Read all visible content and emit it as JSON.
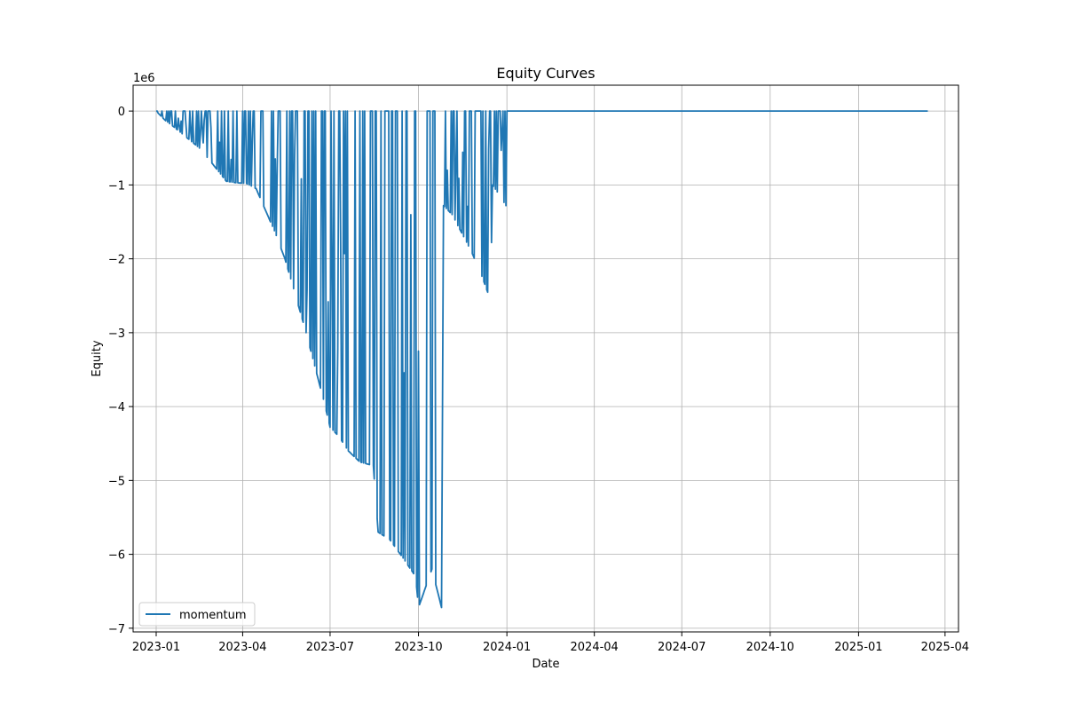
{
  "chart_data": {
    "type": "line",
    "title": "Equity Curves",
    "xlabel": "Date",
    "ylabel": "Equity",
    "y_offset_label": "1e6",
    "x_axis_type": "date",
    "xlim": [
      "2022-12-08",
      "2025-04-15"
    ],
    "ylim": [
      -7.05,
      0.35
    ],
    "x_ticks": [
      "2023-01-01",
      "2023-04-01",
      "2023-07-01",
      "2023-10-01",
      "2024-01-01",
      "2024-04-01",
      "2024-07-01",
      "2024-10-01",
      "2025-01-01",
      "2025-04-01"
    ],
    "x_tick_labels": [
      "2023-01",
      "2023-04",
      "2023-07",
      "2023-10",
      "2024-01",
      "2024-04",
      "2024-07",
      "2024-10",
      "2025-01",
      "2025-04"
    ],
    "y_ticks": [
      0,
      -1,
      -2,
      -3,
      -4,
      -5,
      -6,
      -7
    ],
    "y_tick_labels": [
      "0",
      "−1",
      "−2",
      "−3",
      "−4",
      "−5",
      "−6",
      "−7"
    ],
    "grid": true,
    "legend_position": "lower-left",
    "series": [
      {
        "name": "momentum",
        "color": "#1f77b4",
        "y_units": "1e6",
        "envelope_points": [
          [
            "2023-01-01",
            0.0
          ],
          [
            "2023-01-10",
            -0.12
          ],
          [
            "2023-01-20",
            -0.22
          ],
          [
            "2023-02-01",
            -0.35
          ],
          [
            "2023-02-15",
            -0.5
          ],
          [
            "2023-03-01",
            -0.72
          ],
          [
            "2023-03-15",
            -0.95
          ],
          [
            "2023-03-25",
            -0.97
          ],
          [
            "2023-04-05",
            -0.98
          ],
          [
            "2023-04-15",
            -1.05
          ],
          [
            "2023-04-25",
            -1.35
          ],
          [
            "2023-05-05",
            -1.65
          ],
          [
            "2023-05-15",
            -2.0
          ],
          [
            "2023-05-25",
            -2.45
          ],
          [
            "2023-06-05",
            -2.95
          ],
          [
            "2023-06-15",
            -3.45
          ],
          [
            "2023-06-25",
            -3.95
          ],
          [
            "2023-07-01",
            -4.28
          ],
          [
            "2023-07-10",
            -4.4
          ],
          [
            "2023-07-20",
            -4.6
          ],
          [
            "2023-08-01",
            -4.75
          ],
          [
            "2023-08-15",
            -4.8
          ],
          [
            "2023-08-20",
            -5.7
          ],
          [
            "2023-09-01",
            -5.8
          ],
          [
            "2023-09-15",
            -6.05
          ],
          [
            "2023-09-28",
            -6.3
          ],
          [
            "2023-10-01",
            -6.72
          ],
          [
            "2023-10-15",
            -6.2
          ],
          [
            "2023-10-25",
            -6.72
          ],
          [
            "2023-10-27",
            -1.28
          ],
          [
            "2023-11-05",
            -1.4
          ],
          [
            "2023-11-15",
            -1.65
          ],
          [
            "2023-11-25",
            -1.9
          ],
          [
            "2023-12-05",
            -2.2
          ],
          [
            "2023-12-15",
            -2.56
          ],
          [
            "2023-12-17",
            -1.0
          ],
          [
            "2023-12-25",
            -1.15
          ],
          [
            "2023-12-31",
            -1.28
          ]
        ],
        "baseline": [
          [
            "2023-01-01",
            0.0
          ],
          [
            "2024-01-01",
            0.0
          ],
          [
            "2025-03-14",
            0.0
          ]
        ]
      }
    ]
  }
}
